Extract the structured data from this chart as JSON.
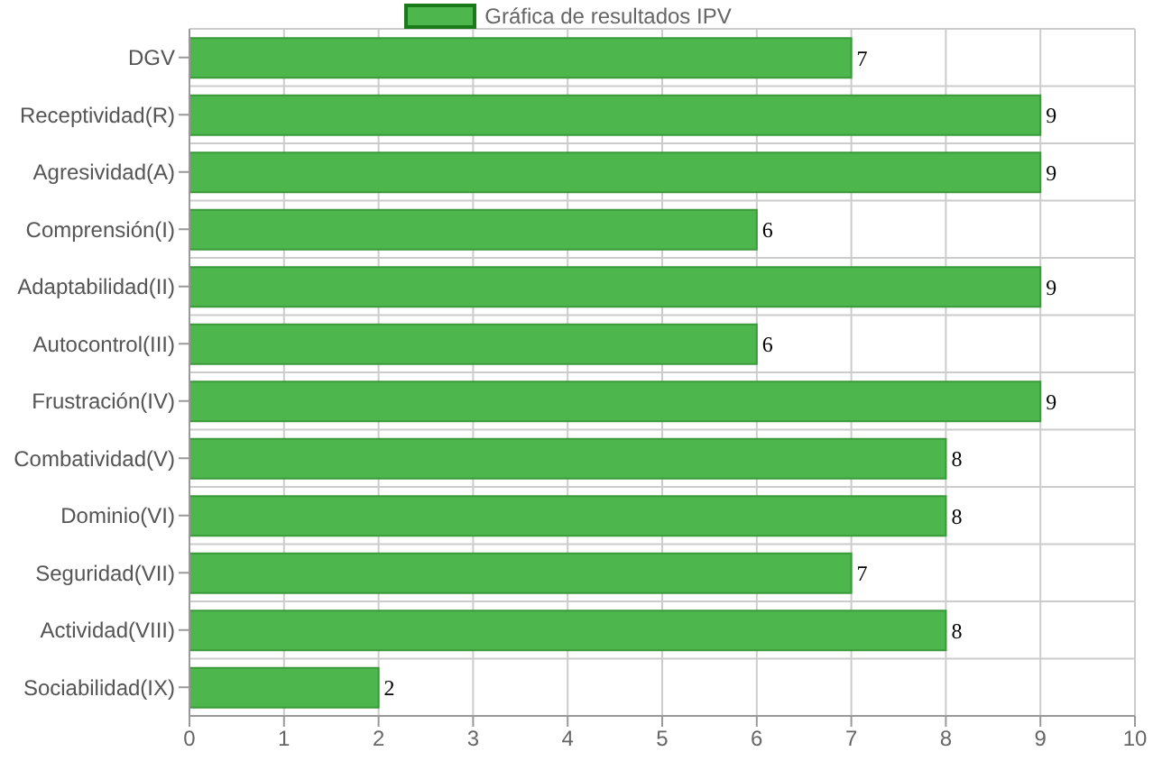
{
  "chart_data": {
    "type": "bar",
    "orientation": "horizontal",
    "categories": [
      "DGV",
      "Receptividad(R)",
      "Agresividad(A)",
      "Comprensión(I)",
      "Adaptabilidad(II)",
      "Autocontrol(III)",
      "Frustración(IV)",
      "Combatividad(V)",
      "Dominio(VI)",
      "Seguridad(VII)",
      "Actividad(VIII)",
      "Sociabilidad(IX)"
    ],
    "series": [
      {
        "name": "Gráfica de resultados IPV",
        "color": "#4db64d",
        "values": [
          7,
          9,
          9,
          6,
          9,
          6,
          9,
          8,
          8,
          7,
          8,
          2
        ]
      }
    ],
    "xlim": [
      0,
      10
    ],
    "xticks": [
      0,
      1,
      2,
      3,
      4,
      5,
      6,
      7,
      8,
      9,
      10
    ],
    "grid": true,
    "legend": "top",
    "data_labels": true
  }
}
